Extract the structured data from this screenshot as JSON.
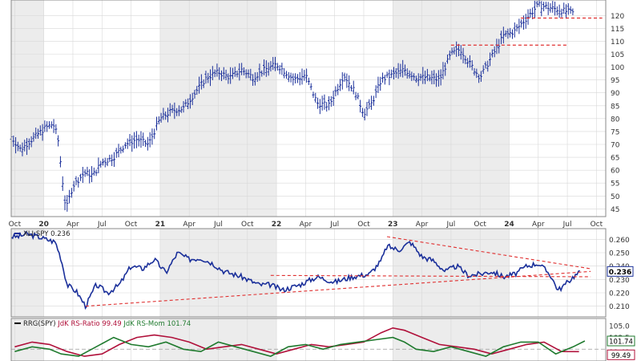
{
  "chart_data": [
    {
      "type": "ohlc",
      "ylim": [
        42,
        126
      ],
      "y_ticks": [
        45,
        50,
        55,
        60,
        65,
        70,
        75,
        80,
        85,
        90,
        95,
        100,
        105,
        110,
        115,
        120
      ],
      "x_range": [
        2019.72,
        2024.83
      ],
      "x_ticks": [
        {
          "label": "Oct",
          "x": 2019.75
        },
        {
          "label": "20",
          "x": 2020.0
        },
        {
          "label": "Apr",
          "x": 2020.25
        },
        {
          "label": "Jul",
          "x": 2020.5
        },
        {
          "label": "Oct",
          "x": 2020.75
        },
        {
          "label": "21",
          "x": 2021.0
        },
        {
          "label": "Apr",
          "x": 2021.25
        },
        {
          "label": "Jul",
          "x": 2021.5
        },
        {
          "label": "Oct",
          "x": 2021.75
        },
        {
          "label": "22",
          "x": 2022.0
        },
        {
          "label": "Apr",
          "x": 2022.25
        },
        {
          "label": "Jul",
          "x": 2022.5
        },
        {
          "label": "Oct",
          "x": 2022.75
        },
        {
          "label": "23",
          "x": 2023.0
        },
        {
          "label": "Apr",
          "x": 2023.25
        },
        {
          "label": "Jul",
          "x": 2023.5
        },
        {
          "label": "Oct",
          "x": 2023.75
        },
        {
          "label": "24",
          "x": 2024.0
        },
        {
          "label": "Apr",
          "x": 2024.25
        },
        {
          "label": "Jul",
          "x": 2024.5
        },
        {
          "label": "Oct",
          "x": 2024.75
        }
      ],
      "price_path": [
        [
          2019.72,
          73
        ],
        [
          2019.8,
          68
        ],
        [
          2019.9,
          72
        ],
        [
          2020.0,
          76
        ],
        [
          2020.08,
          78
        ],
        [
          2020.12,
          73
        ],
        [
          2020.18,
          48
        ],
        [
          2020.2,
          46
        ],
        [
          2020.25,
          54
        ],
        [
          2020.35,
          59
        ],
        [
          2020.42,
          58
        ],
        [
          2020.5,
          63
        ],
        [
          2020.6,
          65
        ],
        [
          2020.7,
          70
        ],
        [
          2020.8,
          72
        ],
        [
          2020.9,
          70
        ],
        [
          2021.0,
          80
        ],
        [
          2021.1,
          83
        ],
        [
          2021.2,
          84
        ],
        [
          2021.3,
          90
        ],
        [
          2021.4,
          96
        ],
        [
          2021.5,
          98
        ],
        [
          2021.6,
          96
        ],
        [
          2021.7,
          99
        ],
        [
          2021.8,
          96
        ],
        [
          2021.9,
          99
        ],
        [
          2022.0,
          101
        ],
        [
          2022.08,
          98
        ],
        [
          2022.15,
          95
        ],
        [
          2022.25,
          97
        ],
        [
          2022.35,
          86
        ],
        [
          2022.45,
          85
        ],
        [
          2022.58,
          97
        ],
        [
          2022.68,
          90
        ],
        [
          2022.75,
          82
        ],
        [
          2022.82,
          86
        ],
        [
          2022.9,
          95
        ],
        [
          2023.0,
          97
        ],
        [
          2023.1,
          99
        ],
        [
          2023.2,
          96
        ],
        [
          2023.3,
          96
        ],
        [
          2023.4,
          95
        ],
        [
          2023.5,
          105
        ],
        [
          2023.58,
          107
        ],
        [
          2023.65,
          102
        ],
        [
          2023.75,
          96
        ],
        [
          2023.85,
          104
        ],
        [
          2023.95,
          112
        ],
        [
          2024.05,
          114
        ],
        [
          2024.15,
          119
        ],
        [
          2024.25,
          124
        ],
        [
          2024.35,
          123
        ],
        [
          2024.45,
          122
        ],
        [
          2024.55,
          121
        ]
      ],
      "resistance_lines": [
        {
          "y": 119,
          "x": [
            2024.1,
            2024.8
          ]
        },
        {
          "y": 108.5,
          "x": [
            2023.5,
            2024.5
          ]
        }
      ]
    },
    {
      "type": "line",
      "series": [
        {
          "name": "XLI:SPY",
          "last_value": 0.236
        }
      ],
      "legend_label": "XLI:SPY 0.236",
      "ylim": [
        0.202,
        0.268
      ],
      "y_ticks": [
        "0.260",
        "0.250",
        "0.240",
        "0.230",
        "0.220",
        "0.210"
      ],
      "last_value_label": "0.236",
      "path": [
        [
          2019.72,
          0.262
        ],
        [
          2019.78,
          0.262
        ],
        [
          2019.85,
          0.264
        ],
        [
          2019.95,
          0.262
        ],
        [
          2020.02,
          0.26
        ],
        [
          2020.1,
          0.258
        ],
        [
          2020.15,
          0.245
        ],
        [
          2020.2,
          0.226
        ],
        [
          2020.28,
          0.221
        ],
        [
          2020.36,
          0.21
        ],
        [
          2020.45,
          0.226
        ],
        [
          2020.55,
          0.22
        ],
        [
          2020.65,
          0.226
        ],
        [
          2020.75,
          0.24
        ],
        [
          2020.85,
          0.238
        ],
        [
          2020.95,
          0.245
        ],
        [
          2021.05,
          0.235
        ],
        [
          2021.15,
          0.25
        ],
        [
          2021.25,
          0.245
        ],
        [
          2021.35,
          0.246
        ],
        [
          2021.45,
          0.242
        ],
        [
          2021.55,
          0.236
        ],
        [
          2021.7,
          0.232
        ],
        [
          2021.85,
          0.226
        ],
        [
          2021.95,
          0.226
        ],
        [
          2022.05,
          0.222
        ],
        [
          2022.2,
          0.226
        ],
        [
          2022.35,
          0.232
        ],
        [
          2022.5,
          0.228
        ],
        [
          2022.65,
          0.232
        ],
        [
          2022.8,
          0.234
        ],
        [
          2022.9,
          0.244
        ],
        [
          2022.95,
          0.255
        ],
        [
          2023.05,
          0.252
        ],
        [
          2023.15,
          0.258
        ],
        [
          2023.25,
          0.247
        ],
        [
          2023.35,
          0.244
        ],
        [
          2023.45,
          0.236
        ],
        [
          2023.55,
          0.24
        ],
        [
          2023.65,
          0.233
        ],
        [
          2023.75,
          0.234
        ],
        [
          2023.85,
          0.236
        ],
        [
          2023.95,
          0.232
        ],
        [
          2024.05,
          0.234
        ],
        [
          2024.15,
          0.24
        ],
        [
          2024.25,
          0.242
        ],
        [
          2024.35,
          0.234
        ],
        [
          2024.42,
          0.222
        ],
        [
          2024.48,
          0.226
        ],
        [
          2024.55,
          0.232
        ],
        [
          2024.62,
          0.236
        ]
      ],
      "trend_lines": [
        {
          "from": [
            2020.36,
            0.21
          ],
          "to": [
            2024.7,
            0.236
          ]
        },
        {
          "from": [
            2022.95,
            0.262
          ],
          "to": [
            2024.7,
            0.238
          ]
        },
        {
          "from": [
            2021.95,
            0.233
          ],
          "to": [
            2024.7,
            0.232
          ]
        }
      ]
    },
    {
      "type": "line",
      "legend": {
        "title": "RRG(SPY)",
        "items": [
          {
            "name": "JdK RS-Ratio",
            "value": "99.49",
            "color": "#b0103a"
          },
          {
            "name": "JdK RS-Mom",
            "value": "101.74",
            "color": "#1f7a2e"
          }
        ]
      },
      "ylim": [
        97.5,
        106.5
      ],
      "y_ticks": [
        "105.0",
        "102.5",
        "99.49"
      ],
      "last_value_labels": [
        "101.74",
        "99.49"
      ],
      "series": [
        {
          "name": "JdK RS-Ratio",
          "color": "#b0103a",
          "path": [
            [
              2019.75,
              100.5
            ],
            [
              2019.9,
              101.5
            ],
            [
              2020.05,
              101.0
            ],
            [
              2020.2,
              99.5
            ],
            [
              2020.35,
              98.5
            ],
            [
              2020.5,
              99.0
            ],
            [
              2020.65,
              101.0
            ],
            [
              2020.8,
              102.5
            ],
            [
              2020.95,
              103.0
            ],
            [
              2021.1,
              102.5
            ],
            [
              2021.25,
              101.5
            ],
            [
              2021.4,
              100.0
            ],
            [
              2021.55,
              100.5
            ],
            [
              2021.7,
              101.0
            ],
            [
              2021.85,
              100.0
            ],
            [
              2022.0,
              99.0
            ],
            [
              2022.15,
              100.0
            ],
            [
              2022.3,
              101.0
            ],
            [
              2022.45,
              100.5
            ],
            [
              2022.6,
              101.0
            ],
            [
              2022.75,
              101.5
            ],
            [
              2022.9,
              103.5
            ],
            [
              2023.0,
              104.5
            ],
            [
              2023.1,
              104.0
            ],
            [
              2023.25,
              102.5
            ],
            [
              2023.4,
              101.0
            ],
            [
              2023.55,
              100.5
            ],
            [
              2023.7,
              100.0
            ],
            [
              2023.85,
              99.0
            ],
            [
              2024.0,
              100.0
            ],
            [
              2024.15,
              101.0
            ],
            [
              2024.3,
              101.5
            ],
            [
              2024.45,
              99.5
            ],
            [
              2024.6,
              99.49
            ]
          ]
        },
        {
          "name": "JdK RS-Mom",
          "color": "#1f7a2e",
          "path": [
            [
              2019.75,
              99.5
            ],
            [
              2019.9,
              100.5
            ],
            [
              2020.05,
              100.0
            ],
            [
              2020.15,
              99.0
            ],
            [
              2020.3,
              98.5
            ],
            [
              2020.45,
              100.5
            ],
            [
              2020.6,
              102.5
            ],
            [
              2020.75,
              101.0
            ],
            [
              2020.9,
              100.5
            ],
            [
              2021.05,
              101.5
            ],
            [
              2021.2,
              100.0
            ],
            [
              2021.35,
              99.5
            ],
            [
              2021.5,
              101.5
            ],
            [
              2021.65,
              100.5
            ],
            [
              2021.8,
              99.5
            ],
            [
              2021.95,
              98.5
            ],
            [
              2022.1,
              100.5
            ],
            [
              2022.25,
              101.0
            ],
            [
              2022.4,
              100.0
            ],
            [
              2022.55,
              101.0
            ],
            [
              2022.7,
              101.5
            ],
            [
              2022.85,
              102.0
            ],
            [
              2023.0,
              102.5
            ],
            [
              2023.1,
              101.5
            ],
            [
              2023.2,
              100.0
            ],
            [
              2023.35,
              99.5
            ],
            [
              2023.5,
              100.5
            ],
            [
              2023.65,
              99.5
            ],
            [
              2023.8,
              98.5
            ],
            [
              2023.95,
              100.5
            ],
            [
              2024.1,
              101.5
            ],
            [
              2024.25,
              101.5
            ],
            [
              2024.4,
              99.0
            ],
            [
              2024.55,
              100.5
            ],
            [
              2024.65,
              101.74
            ]
          ]
        }
      ]
    }
  ],
  "colors": {
    "price": "#1a2f9a",
    "trend": "#e03030",
    "band_shade": "#ececec",
    "grid": "#d8d8d8",
    "axis_text": "#333333",
    "value_box": "#1a2f9a"
  }
}
